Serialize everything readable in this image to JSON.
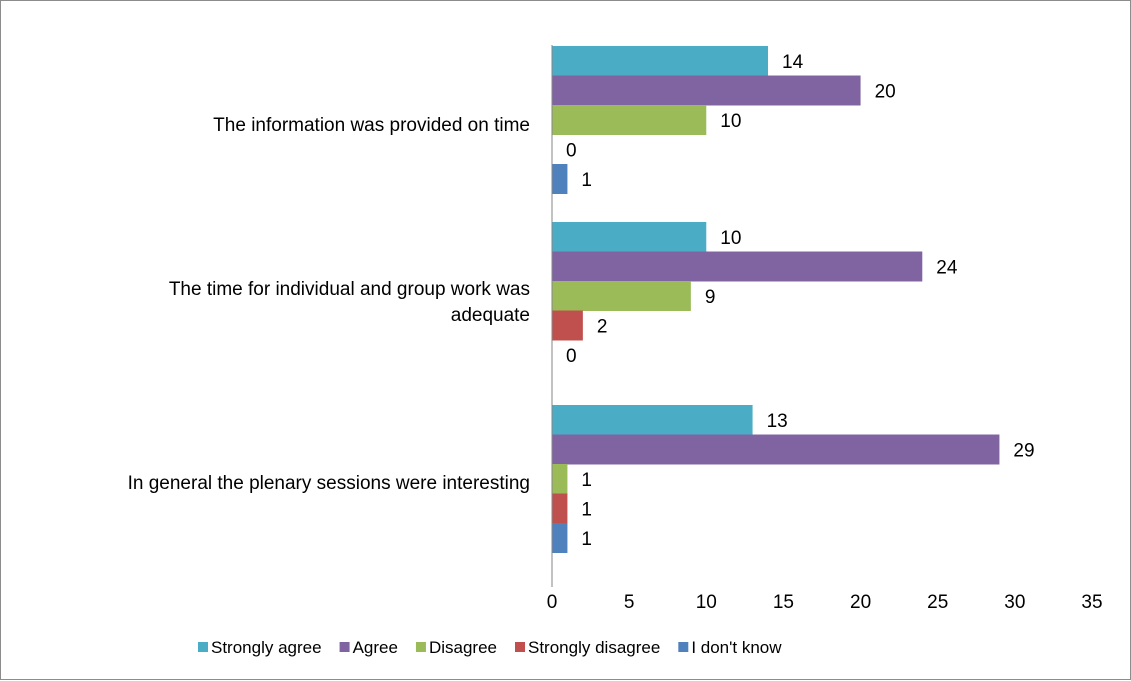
{
  "chart_data": {
    "type": "bar",
    "orientation": "horizontal",
    "categories": [
      "The information was provided on time",
      "The time for individual and group work was adequate",
      "In general the plenary sessions were interesting"
    ],
    "category_label_lines": [
      [
        "The information was provided on time"
      ],
      [
        "The time for individual and group work was",
        "adequate"
      ],
      [
        "In general the plenary sessions were interesting"
      ]
    ],
    "series": [
      {
        "name": "Strongly agree",
        "color": "#4BACC6",
        "values": [
          14,
          10,
          13
        ]
      },
      {
        "name": "Agree",
        "color": "#8064A2",
        "values": [
          20,
          24,
          29
        ]
      },
      {
        "name": "Disagree",
        "color": "#9BBB59",
        "values": [
          10,
          9,
          1
        ]
      },
      {
        "name": "Strongly disagree",
        "color": "#C0504D",
        "values": [
          0,
          2,
          1
        ]
      },
      {
        "name": "I don't know",
        "color": "#4F81BD",
        "values": [
          1,
          0,
          1
        ]
      }
    ],
    "xlim": [
      0,
      35
    ],
    "x_ticks": [
      0,
      5,
      10,
      15,
      20,
      25,
      30,
      35
    ],
    "grid": false,
    "legend_position": "bottom",
    "title": "",
    "xlabel": "",
    "ylabel": ""
  }
}
